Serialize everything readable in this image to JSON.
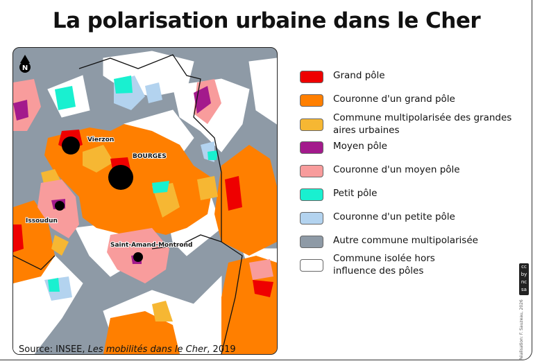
{
  "title": "La polarisation urbaine dans le Cher",
  "map": {
    "north_label": "N",
    "cities": [
      {
        "name": "Vierzon"
      },
      {
        "name": "BOURGES"
      },
      {
        "name": "Issoudun"
      },
      {
        "name": "Saint-Amand-Montrond"
      }
    ]
  },
  "legend": [
    {
      "label": "Grand pôle",
      "color": "#ee0000"
    },
    {
      "label": "Couronne d'un grand pôle",
      "color": "#ff7f00"
    },
    {
      "label": "Commune multipolarisée des grandes aires urbaines",
      "color": "#f6b733"
    },
    {
      "label": "Moyen pôle",
      "color": "#a31a8c"
    },
    {
      "label": "Couronne d'un moyen pôle",
      "color": "#f89c9c"
    },
    {
      "label": "Petit pôle",
      "color": "#19f0d0"
    },
    {
      "label": "Couronne d'un petite pôle",
      "color": "#b3d3ef"
    },
    {
      "label": "Autre commune multipolarisée",
      "color": "#8e9aa6"
    },
    {
      "label": "Commune isolée hors influence des pôles",
      "color": "#ffffff"
    }
  ],
  "source": {
    "prefix": "Source: INSEE, ",
    "work": "Les mobilités dans le Cher",
    "year": ", 2019"
  },
  "credit": {
    "license": "cc by nc sa",
    "text": "Réalisation: F. Sauzeau, 2026"
  }
}
